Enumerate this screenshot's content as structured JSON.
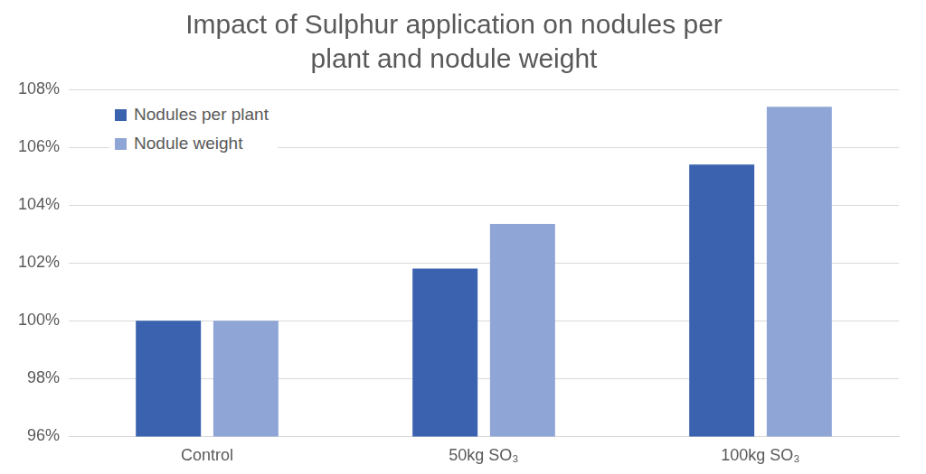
{
  "chart_data": {
    "type": "bar",
    "title": [
      "Impact of Sulphur application on nodules per",
      "plant and nodule weight"
    ],
    "categories": [
      "Control",
      "50kg SO₃",
      "100kg SO₃"
    ],
    "series": [
      {
        "name": "Nodules per plant",
        "color": "#3a62ae",
        "values": [
          100,
          101.8,
          105.4
        ]
      },
      {
        "name": "Nodule weight",
        "color": "#8fa5d6",
        "values": [
          100,
          103.35,
          107.4
        ]
      }
    ],
    "ylim": [
      96,
      108
    ],
    "yticks": [
      {
        "value": 96,
        "label": "96%"
      },
      {
        "value": 98,
        "label": "98%"
      },
      {
        "value": 100,
        "label": "100%"
      },
      {
        "value": 102,
        "label": "102%"
      },
      {
        "value": 104,
        "label": "104%"
      },
      {
        "value": 106,
        "label": "106%"
      },
      {
        "value": 108,
        "label": "108%"
      }
    ],
    "grid": true,
    "legend": "top-left"
  }
}
